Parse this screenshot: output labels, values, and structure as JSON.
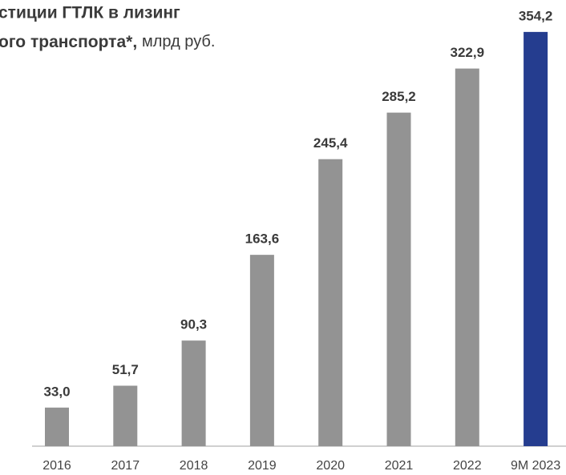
{
  "chart_data": {
    "type": "bar",
    "title": [
      "стиции ГТЛК в лизинг",
      "ого транспорта*,"
    ],
    "unit": "млрд руб.",
    "categories": [
      "2016",
      "2017",
      "2018",
      "2019",
      "2020",
      "2021",
      "2022",
      "9M 2023"
    ],
    "values": [
      33.0,
      51.7,
      90.3,
      163.6,
      245.4,
      285.2,
      322.9,
      354.2
    ],
    "value_labels": [
      "33,0",
      "51,7",
      "90,3",
      "163,6",
      "245,4",
      "285,2",
      "322,9",
      "354,2"
    ],
    "colors": [
      "#939393",
      "#939393",
      "#939393",
      "#939393",
      "#939393",
      "#939393",
      "#939393",
      "#253d8f"
    ],
    "ylim": [
      0,
      360
    ]
  }
}
